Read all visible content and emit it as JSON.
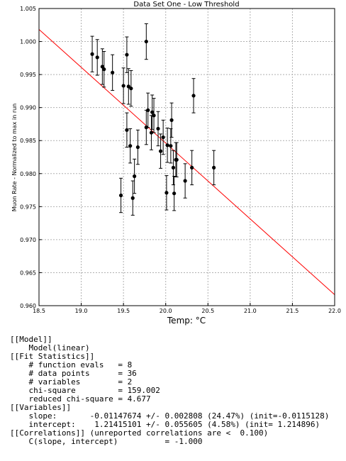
{
  "chart_data": {
    "type": "scatter",
    "title": "Data Set One - Low Threshold",
    "xlabel": "Temp: °C",
    "ylabel": "Muon Rate - Normalized to max in run",
    "xlim": [
      18.5,
      22.0
    ],
    "ylim": [
      0.96,
      1.005
    ],
    "xticks": [
      "18.5",
      "19.0",
      "19.5",
      "20.0",
      "20.5",
      "21.0",
      "21.5",
      "22.0"
    ],
    "yticks": [
      "0.960",
      "0.965",
      "0.970",
      "0.975",
      "0.980",
      "0.985",
      "0.990",
      "0.995",
      "1.000",
      "1.005"
    ],
    "grid": true,
    "point_color": "#000000",
    "line_color": "#ff0000",
    "fit_line": {
      "slope": -0.01147674,
      "intercept": 1.21415101
    },
    "points": [
      {
        "x": 19.13,
        "y": 0.9981,
        "err": 0.0027
      },
      {
        "x": 19.19,
        "y": 0.9976,
        "err": 0.0027
      },
      {
        "x": 19.25,
        "y": 0.9962,
        "err": 0.0027
      },
      {
        "x": 19.27,
        "y": 0.9958,
        "err": 0.0027
      },
      {
        "x": 19.37,
        "y": 0.9953,
        "err": 0.0027
      },
      {
        "x": 19.47,
        "y": 0.9767,
        "err": 0.0026
      },
      {
        "x": 19.5,
        "y": 0.9933,
        "err": 0.0027
      },
      {
        "x": 19.54,
        "y": 0.998,
        "err": 0.0027
      },
      {
        "x": 19.54,
        "y": 0.9866,
        "err": 0.0026
      },
      {
        "x": 19.56,
        "y": 0.9932,
        "err": 0.0027
      },
      {
        "x": 19.58,
        "y": 0.9842,
        "err": 0.0026
      },
      {
        "x": 19.59,
        "y": 0.9929,
        "err": 0.0027
      },
      {
        "x": 19.61,
        "y": 0.9763,
        "err": 0.0026
      },
      {
        "x": 19.63,
        "y": 0.9796,
        "err": 0.0026
      },
      {
        "x": 19.67,
        "y": 0.984,
        "err": 0.0026
      },
      {
        "x": 19.77,
        "y": 1.0,
        "err": 0.0027
      },
      {
        "x": 19.77,
        "y": 0.987,
        "err": 0.0026
      },
      {
        "x": 19.79,
        "y": 0.9896,
        "err": 0.0026
      },
      {
        "x": 19.83,
        "y": 0.9862,
        "err": 0.0026
      },
      {
        "x": 19.84,
        "y": 0.9893,
        "err": 0.0026
      },
      {
        "x": 19.86,
        "y": 0.9888,
        "err": 0.0026
      },
      {
        "x": 19.91,
        "y": 0.9868,
        "err": 0.0026
      },
      {
        "x": 19.94,
        "y": 0.9834,
        "err": 0.0026
      },
      {
        "x": 19.97,
        "y": 0.9855,
        "err": 0.0026
      },
      {
        "x": 20.01,
        "y": 0.9771,
        "err": 0.0026
      },
      {
        "x": 20.02,
        "y": 0.9843,
        "err": 0.0026
      },
      {
        "x": 20.06,
        "y": 0.9842,
        "err": 0.0026
      },
      {
        "x": 20.07,
        "y": 0.9881,
        "err": 0.0026
      },
      {
        "x": 20.09,
        "y": 0.9809,
        "err": 0.0026
      },
      {
        "x": 20.1,
        "y": 0.977,
        "err": 0.0026
      },
      {
        "x": 20.12,
        "y": 0.9821,
        "err": 0.0026
      },
      {
        "x": 20.13,
        "y": 0.9821,
        "err": 0.0026
      },
      {
        "x": 20.23,
        "y": 0.9789,
        "err": 0.0026
      },
      {
        "x": 20.31,
        "y": 0.9809,
        "err": 0.0026
      },
      {
        "x": 20.33,
        "y": 0.9918,
        "err": 0.0026
      },
      {
        "x": 20.57,
        "y": 0.9809,
        "err": 0.0026
      }
    ]
  },
  "report": {
    "lines": [
      "[[Model]]",
      "    Model(linear)",
      "[[Fit Statistics]]",
      "    # function evals   = 8",
      "    # data points      = 36",
      "    # variables        = 2",
      "    chi-square         = 159.002",
      "    reduced chi-square = 4.677",
      "[[Variables]]",
      "    slope:       -0.01147674 +/- 0.002808 (24.47%) (init=-0.0115128)",
      "    intercept:    1.21415101 +/- 0.055605 (4.58%) (init= 1.214896)",
      "[[Correlations]] (unreported correlations are <  0.100)",
      "    C(slope, intercept)          = -1.000"
    ]
  }
}
